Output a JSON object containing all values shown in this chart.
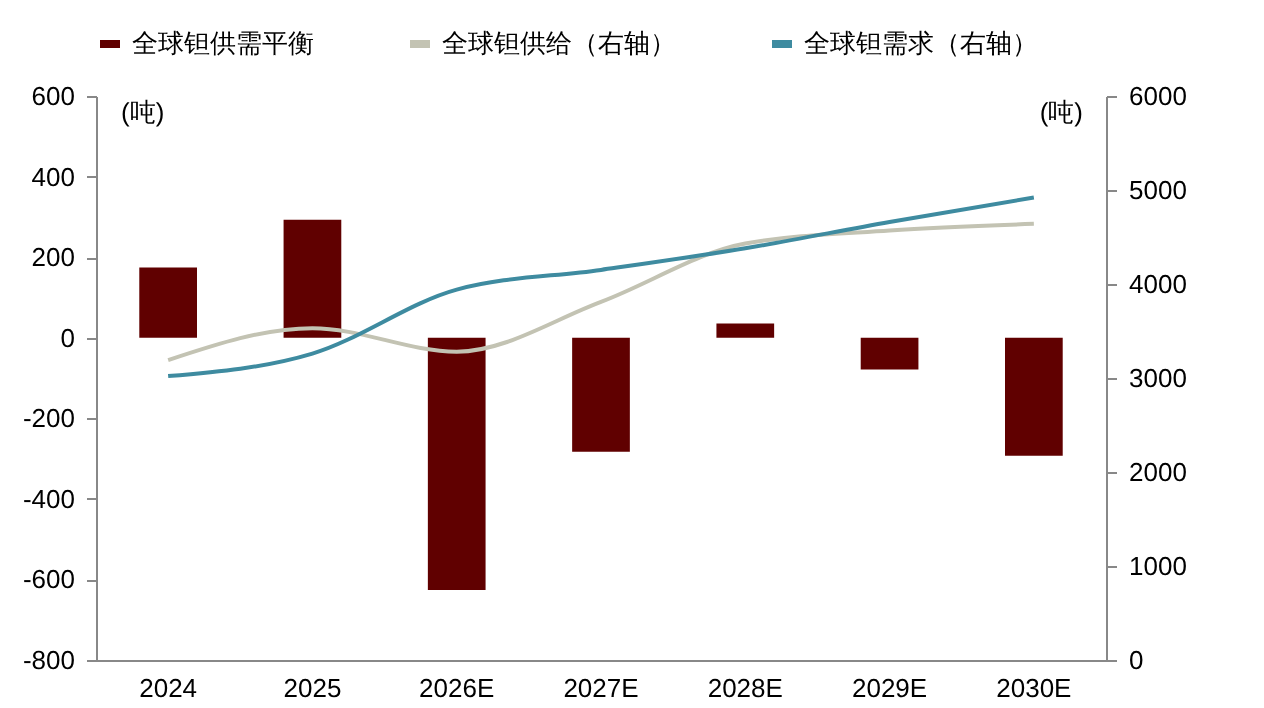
{
  "chart_data": {
    "type": "bar",
    "categories": [
      "2024",
      "2025",
      "2026E",
      "2027E",
      "2028E",
      "2029E",
      "2030E"
    ],
    "ylabel": "(吨)",
    "y2label": "(吨)",
    "ylim": [
      -800,
      600
    ],
    "yticks": [
      -800,
      -600,
      -400,
      -200,
      0,
      200,
      400,
      600
    ],
    "y2lim": [
      0,
      6000
    ],
    "y2ticks": [
      0,
      1000,
      2000,
      3000,
      4000,
      5000,
      6000
    ],
    "grid": false,
    "legend": "top",
    "series": [
      {
        "name": "全球钽供需平衡",
        "type": "bar",
        "color": "#600000",
        "values": [
          174,
          293,
          -626,
          -283,
          35,
          -79,
          -293
        ]
      },
      {
        "name": "全球钽供给（右轴）",
        "type": "line",
        "axis": "y2",
        "color": "#c3c3b3",
        "values": [
          3190,
          3530,
          3280,
          3810,
          4430,
          4570,
          4640
        ]
      },
      {
        "name": "全球钽需求（右轴）",
        "type": "line",
        "axis": "y2",
        "color": "#3e8ba0",
        "values": [
          3020,
          3260,
          3940,
          4150,
          4380,
          4660,
          4920
        ]
      }
    ]
  }
}
